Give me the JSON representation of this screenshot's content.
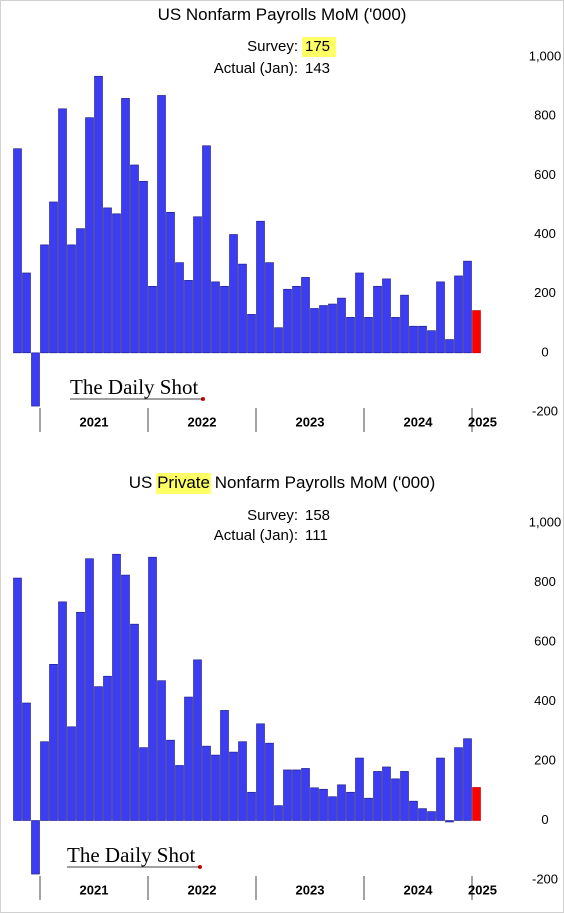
{
  "chart_data": [
    {
      "type": "bar",
      "title_parts": [
        "US Nonfarm Payrolls MoM ('000)"
      ],
      "annotations": [
        {
          "label": "Survey:",
          "value": "175",
          "highlight": true
        },
        {
          "label": "Actual (Jan):",
          "value": "143",
          "highlight": false
        }
      ],
      "brand": "The Daily Shot",
      "x_labels": [
        "2021",
        "2022",
        "2023",
        "2024",
        "2025"
      ],
      "values": [
        690,
        270,
        -180,
        365,
        510,
        825,
        365,
        420,
        795,
        935,
        490,
        470,
        860,
        635,
        580,
        225,
        870,
        475,
        305,
        245,
        460,
        700,
        240,
        225,
        400,
        300,
        130,
        445,
        305,
        85,
        215,
        225,
        255,
        150,
        160,
        165,
        185,
        120,
        270,
        120,
        225,
        250,
        120,
        195,
        90,
        90,
        75,
        240,
        45,
        260,
        310,
        143
      ],
      "color": "#3c3cf2",
      "last_color": "#ff0000",
      "ylim": [
        -200,
        1000
      ],
      "yticks": [
        -200,
        0,
        200,
        400,
        600,
        800,
        {
          "value": 1000,
          "label": "1,000"
        }
      ]
    },
    {
      "type": "bar",
      "title_parts": [
        "US ",
        "Private",
        " Nonfarm Payrolls MoM ('000)"
      ],
      "annotations": [
        {
          "label": "Survey:",
          "value": "158",
          "highlight": false
        },
        {
          "label": "Actual (Jan):",
          "value": "111",
          "highlight": false
        }
      ],
      "brand": "The Daily Shot",
      "x_labels": [
        "2021",
        "2022",
        "2023",
        "2024",
        "2025"
      ],
      "values": [
        815,
        395,
        -180,
        265,
        525,
        735,
        315,
        700,
        880,
        450,
        485,
        895,
        825,
        660,
        245,
        885,
        470,
        270,
        185,
        415,
        540,
        250,
        220,
        370,
        230,
        265,
        95,
        325,
        260,
        50,
        170,
        170,
        175,
        110,
        105,
        80,
        120,
        95,
        210,
        75,
        165,
        180,
        140,
        165,
        65,
        40,
        30,
        210,
        -5,
        245,
        275,
        111
      ],
      "color": "#3c3cf2",
      "last_color": "#ff0000",
      "ylim": [
        -200,
        1000
      ],
      "yticks": [
        -200,
        0,
        200,
        400,
        600,
        800,
        {
          "value": 1000,
          "label": "1,000"
        }
      ]
    }
  ]
}
